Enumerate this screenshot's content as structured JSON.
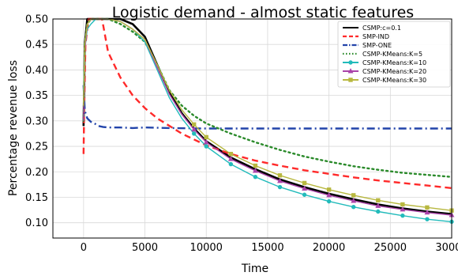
{
  "chart_data": {
    "type": "line",
    "title": "Logistic demand - almost static features",
    "xlabel": "Time",
    "ylabel": "Percentage revenue loss",
    "xlim": [
      -2500,
      30000
    ],
    "ylim": [
      0.07,
      0.5
    ],
    "xticks": [
      0,
      5000,
      10000,
      15000,
      20000,
      25000,
      30000
    ],
    "yticks": [
      0.1,
      0.15,
      0.2,
      0.25,
      0.3,
      0.35,
      0.4,
      0.45,
      0.5
    ],
    "grid": true,
    "legend_position": "top-right",
    "series": [
      {
        "name": "CSMP:c=0.1",
        "color": "#000000",
        "style": "solid",
        "marker": "none",
        "x": [
          0,
          100,
          300,
          600,
          1000,
          2000,
          3000,
          4000,
          5000,
          6000,
          7000,
          8000,
          9000,
          10000,
          12000,
          14000,
          16000,
          18000,
          20000,
          22000,
          24000,
          26000,
          28000,
          30000
        ],
        "y": [
          0.29,
          0.45,
          0.5,
          0.5,
          0.5,
          0.5,
          0.5,
          0.49,
          0.465,
          0.41,
          0.355,
          0.315,
          0.285,
          0.26,
          0.228,
          0.205,
          0.185,
          0.17,
          0.157,
          0.146,
          0.136,
          0.128,
          0.122,
          0.117
        ]
      },
      {
        "name": "SMP-IND",
        "color": "#ff2a2a",
        "style": "dashed",
        "marker": "none",
        "x": [
          0,
          50,
          150,
          400,
          800,
          1500,
          2000,
          3000,
          4000,
          5000,
          6000,
          8000,
          10000,
          12000,
          14000,
          16000,
          18000,
          20000,
          22000,
          24000,
          26000,
          28000,
          30000
        ],
        "y": [
          0.235,
          0.32,
          0.45,
          0.5,
          0.5,
          0.5,
          0.435,
          0.385,
          0.35,
          0.325,
          0.305,
          0.275,
          0.252,
          0.235,
          0.222,
          0.212,
          0.203,
          0.196,
          0.189,
          0.183,
          0.178,
          0.173,
          0.168
        ]
      },
      {
        "name": "SMP-ONE",
        "color": "#2244aa",
        "style": "dashdot",
        "marker": "none",
        "x": [
          0,
          100,
          300,
          600,
          900,
          1200,
          1600,
          2000,
          3000,
          4000,
          5000,
          7000,
          10000,
          15000,
          20000,
          25000,
          30000
        ],
        "y": [
          0.37,
          0.32,
          0.305,
          0.298,
          0.295,
          0.29,
          0.288,
          0.287,
          0.287,
          0.286,
          0.287,
          0.286,
          0.285,
          0.285,
          0.285,
          0.285,
          0.285
        ]
      },
      {
        "name": "CSMP-KMeans:K=5",
        "color": "#2a8a2a",
        "style": "dotted",
        "marker": "none",
        "x": [
          0,
          100,
          300,
          600,
          1000,
          2000,
          3000,
          4000,
          5000,
          6000,
          7000,
          8000,
          9000,
          10000,
          12000,
          14000,
          16000,
          18000,
          20000,
          22000,
          24000,
          26000,
          28000,
          30000
        ],
        "y": [
          0.3,
          0.45,
          0.49,
          0.5,
          0.5,
          0.5,
          0.49,
          0.475,
          0.455,
          0.41,
          0.36,
          0.33,
          0.31,
          0.295,
          0.275,
          0.258,
          0.243,
          0.23,
          0.22,
          0.211,
          0.204,
          0.198,
          0.194,
          0.19
        ]
      },
      {
        "name": "CSMP-KMeans:K=10",
        "color": "#22bbbb",
        "style": "solid",
        "marker": "circle",
        "x": [
          0,
          100,
          300,
          600,
          1000,
          2000,
          3000,
          4000,
          5000,
          6000,
          7000,
          8000,
          9000,
          10000,
          12000,
          14000,
          16000,
          18000,
          20000,
          22000,
          24000,
          26000,
          28000,
          30000
        ],
        "y": [
          0.36,
          0.44,
          0.48,
          0.49,
          0.5,
          0.5,
          0.495,
          0.48,
          0.455,
          0.4,
          0.345,
          0.305,
          0.275,
          0.25,
          0.215,
          0.19,
          0.17,
          0.155,
          0.142,
          0.131,
          0.122,
          0.114,
          0.107,
          0.102
        ]
      },
      {
        "name": "CSMP-KMeans:K=20",
        "color": "#aa44aa",
        "style": "solid",
        "marker": "triangle",
        "x": [
          0,
          100,
          300,
          600,
          1000,
          2000,
          3000,
          4000,
          5000,
          6000,
          7000,
          8000,
          9000,
          10000,
          12000,
          14000,
          16000,
          18000,
          20000,
          22000,
          24000,
          26000,
          28000,
          30000
        ],
        "y": [
          0.3,
          0.44,
          0.49,
          0.5,
          0.5,
          0.5,
          0.495,
          0.48,
          0.46,
          0.405,
          0.352,
          0.313,
          0.283,
          0.258,
          0.225,
          0.202,
          0.182,
          0.167,
          0.154,
          0.143,
          0.133,
          0.126,
          0.12,
          0.115
        ]
      },
      {
        "name": "CSMP-KMeans:K=30",
        "color": "#b8b840",
        "style": "solid",
        "marker": "square",
        "x": [
          0,
          100,
          300,
          600,
          1000,
          2000,
          3000,
          4000,
          5000,
          6000,
          7000,
          8000,
          9000,
          10000,
          12000,
          14000,
          16000,
          18000,
          20000,
          22000,
          24000,
          26000,
          28000,
          30000
        ],
        "y": [
          0.33,
          0.45,
          0.49,
          0.5,
          0.5,
          0.5,
          0.495,
          0.48,
          0.46,
          0.41,
          0.36,
          0.322,
          0.293,
          0.268,
          0.235,
          0.212,
          0.193,
          0.178,
          0.165,
          0.154,
          0.144,
          0.136,
          0.13,
          0.124
        ]
      }
    ]
  }
}
